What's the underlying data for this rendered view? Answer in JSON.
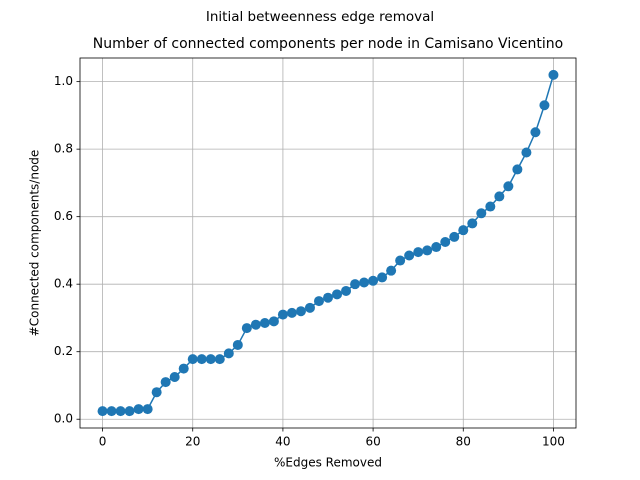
{
  "chart_data": {
    "type": "line",
    "suptitle": "Initial betweenness edge removal",
    "title": "Number of connected components per node in Camisano Vicentino",
    "xlabel": "%Edges Removed",
    "ylabel": "#Connected components/node",
    "color": "#1f77b4",
    "grid": true,
    "marker": "o",
    "x": [
      0,
      2,
      4,
      6,
      8,
      10,
      12,
      14,
      16,
      18,
      20,
      22,
      24,
      26,
      28,
      30,
      32,
      34,
      36,
      38,
      40,
      42,
      44,
      46,
      48,
      50,
      52,
      54,
      56,
      58,
      60,
      62,
      64,
      66,
      68,
      70,
      72,
      74,
      76,
      78,
      80,
      82,
      84,
      86,
      88,
      90,
      92,
      94,
      96,
      98,
      100
    ],
    "values": [
      0.024,
      0.024,
      0.024,
      0.024,
      0.03,
      0.03,
      0.08,
      0.11,
      0.125,
      0.15,
      0.178,
      0.178,
      0.178,
      0.178,
      0.195,
      0.22,
      0.27,
      0.28,
      0.285,
      0.29,
      0.31,
      0.315,
      0.32,
      0.33,
      0.35,
      0.36,
      0.37,
      0.38,
      0.4,
      0.405,
      0.41,
      0.42,
      0.44,
      0.47,
      0.485,
      0.495,
      0.5,
      0.51,
      0.525,
      0.54,
      0.56,
      0.58,
      0.61,
      0.63,
      0.66,
      0.69,
      0.74,
      0.79,
      0.85,
      0.93,
      1.02
    ],
    "xlim": [
      -5,
      105
    ],
    "xticks": [
      0,
      20,
      40,
      60,
      80,
      100
    ],
    "ylim": [
      -0.026,
      1.07
    ],
    "yticks": [
      {
        "value": 0,
        "label": "0.0"
      },
      0.2,
      0.4,
      0.6,
      0.8,
      {
        "value": 1,
        "label": "1.0"
      }
    ]
  }
}
